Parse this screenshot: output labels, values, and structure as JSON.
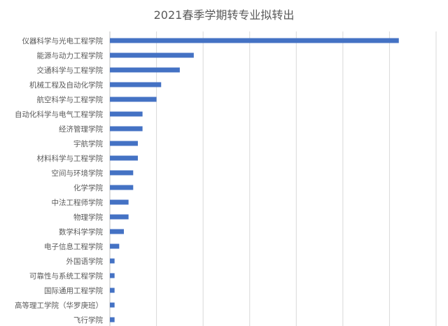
{
  "chart_data": {
    "type": "bar",
    "orientation": "horizontal",
    "title": "2021春季学期转专业拟转出",
    "xlabel": "",
    "ylabel": "",
    "xlim": [
      0,
      70
    ],
    "grid": true,
    "bar_color": "#4472C4",
    "categories": [
      "仪器科学与光电工程学院",
      "能源与动力工程学院",
      "交通科学与工程学院",
      "机械工程及自动化学院",
      "航空科学与工程学院",
      "自动化科学与电气工程学院",
      "经济管理学院",
      "宇航学院",
      "材料科学与工程学院",
      "空间与环境学院",
      "化学学院",
      "中法工程师学院",
      "物理学院",
      "数学科学学院",
      "电子信息工程学院",
      "外国语学院",
      "可靠性与系统工程学院",
      "国际通用工程学院",
      "高等理工学院（华罗庚班）",
      "飞行学院"
    ],
    "values": [
      62,
      18,
      15,
      11,
      10,
      7,
      7,
      6,
      6,
      5,
      5,
      4,
      4,
      3,
      2,
      1,
      1,
      1,
      1,
      1
    ]
  }
}
